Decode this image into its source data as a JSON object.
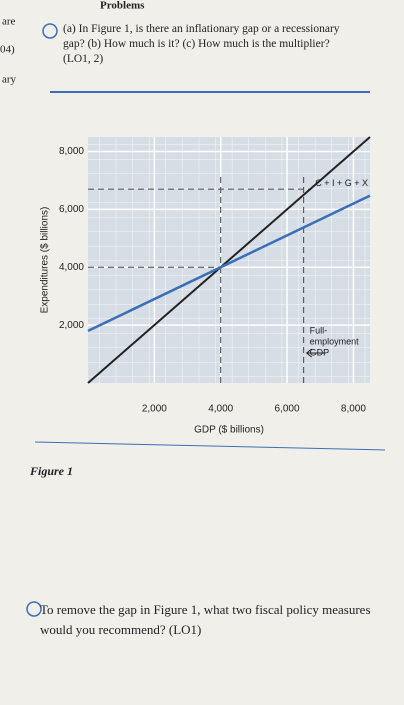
{
  "page": {
    "header": "Problems",
    "margin_texts": [
      "are",
      "04)",
      "ary"
    ],
    "question_1": "(a) In Figure 1, is there an inflationary gap or a recessionary gap? (b) How much is it? (c) How much is the multiplier? (LO1, 2)",
    "figure_caption": "Figure 1",
    "question_2": "To remove the gap in Figure 1, what two fiscal policy measures would you recommend? (LO1)"
  },
  "chart_data": {
    "type": "line",
    "x_label": "GDP ($ billions)",
    "y_label": "Expenditures ($ billions)",
    "x": [
      0,
      8500
    ],
    "series": [
      {
        "color": "#222222",
        "values": [
          0,
          8500
        ]
      },
      {
        "name": "C + I + G + X",
        "color": "#3a6fb8",
        "values": [
          1800,
          6475
        ]
      }
    ],
    "xlim": [
      0,
      8500
    ],
    "ylim": [
      0,
      8500
    ],
    "xticks": [
      {
        "value": 2000,
        "label": "2,000"
      },
      {
        "value": 4000,
        "label": "4,000"
      },
      {
        "value": 6000,
        "label": "6,000"
      },
      {
        "value": 8000,
        "label": "8,000"
      }
    ],
    "yticks": [
      {
        "value": 2000,
        "label": "2,000"
      },
      {
        "value": 4000,
        "label": "4,000"
      },
      {
        "value": 6000,
        "label": "6,000"
      },
      {
        "value": 8000,
        "label": "8,000"
      }
    ],
    "hlines": [
      4000,
      6700
    ],
    "vlines": [
      4000,
      6500
    ],
    "annotation": {
      "lines": [
        "Full-",
        "employment",
        "GDP"
      ],
      "x": 6500
    },
    "grid": true
  }
}
